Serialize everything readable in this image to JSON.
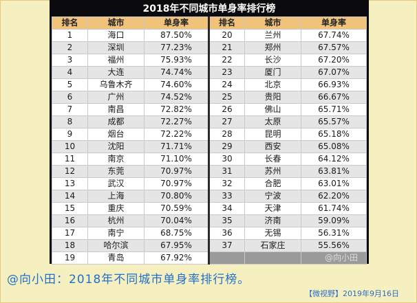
{
  "table": {
    "title": "2018年不同城市单身率排行榜",
    "headers": [
      "排名",
      "城市",
      "单身率",
      "排名",
      "城市",
      "单身率"
    ],
    "rows": [
      {
        "r1": "1",
        "c1": "海口",
        "p1": "87.50%",
        "r2": "20",
        "c2": "兰州",
        "p2": "67.74%"
      },
      {
        "r1": "2",
        "c1": "深圳",
        "p1": "77.23%",
        "r2": "21",
        "c2": "郑州",
        "p2": "67.57%"
      },
      {
        "r1": "3",
        "c1": "福州",
        "p1": "75.93%",
        "r2": "22",
        "c2": "长沙",
        "p2": "67.20%"
      },
      {
        "r1": "4",
        "c1": "大连",
        "p1": "74.74%",
        "r2": "23",
        "c2": "厦门",
        "p2": "67.07%"
      },
      {
        "r1": "5",
        "c1": "乌鲁木齐",
        "p1": "74.60%",
        "r2": "24",
        "c2": "北京",
        "p2": "66.93%"
      },
      {
        "r1": "6",
        "c1": "广州",
        "p1": "74.52%",
        "r2": "25",
        "c2": "贵阳",
        "p2": "66.67%"
      },
      {
        "r1": "7",
        "c1": "南昌",
        "p1": "72.82%",
        "r2": "26",
        "c2": "佛山",
        "p2": "65.71%"
      },
      {
        "r1": "8",
        "c1": "成都",
        "p1": "72.27%",
        "r2": "27",
        "c2": "太原",
        "p2": "65.57%"
      },
      {
        "r1": "9",
        "c1": "烟台",
        "p1": "72.22%",
        "r2": "28",
        "c2": "昆明",
        "p2": "65.18%"
      },
      {
        "r1": "10",
        "c1": "沈阳",
        "p1": "71.71%",
        "r2": "29",
        "c2": "西安",
        "p2": "65.08%"
      },
      {
        "r1": "11",
        "c1": "南京",
        "p1": "71.10%",
        "r2": "30",
        "c2": "长春",
        "p2": "64.12%"
      },
      {
        "r1": "12",
        "c1": "东莞",
        "p1": "70.97%",
        "r2": "31",
        "c2": "苏州",
        "p2": "63.81%"
      },
      {
        "r1": "13",
        "c1": "武汉",
        "p1": "70.97%",
        "r2": "32",
        "c2": "合肥",
        "p2": "63.01%"
      },
      {
        "r1": "14",
        "c1": "上海",
        "p1": "70.80%",
        "r2": "33",
        "c2": "宁波",
        "p2": "62.20%"
      },
      {
        "r1": "15",
        "c1": "重庆",
        "p1": "70.59%",
        "r2": "34",
        "c2": "天津",
        "p2": "61.74%"
      },
      {
        "r1": "16",
        "c1": "杭州",
        "p1": "70.04%",
        "r2": "35",
        "c2": "济南",
        "p2": "59.09%"
      },
      {
        "r1": "17",
        "c1": "南宁",
        "p1": "68.75%",
        "r2": "36",
        "c2": "无锡",
        "p2": "56.31%"
      },
      {
        "r1": "18",
        "c1": "哈尔滨",
        "p1": "67.95%",
        "r2": "37",
        "c2": "石家庄",
        "p2": "55.56%"
      },
      {
        "r1": "19",
        "c1": "青岛",
        "p1": "67.92%",
        "r2": "",
        "c2": "",
        "p2": ""
      }
    ]
  },
  "watermark": "@向小田",
  "caption": "@向小田：2018年不同城市单身率排行榜。",
  "source": "【微视野】2019年9月16日"
}
